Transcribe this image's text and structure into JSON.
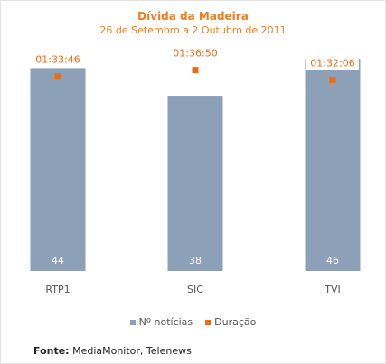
{
  "chart_data": {
    "type": "bar",
    "title": "Dívida da Madeira",
    "subtitle": "26 de Setembro a 2 Outubro de 2011",
    "categories": [
      "RTP1",
      "SIC",
      "TVI"
    ],
    "ylim": [
      0,
      48
    ],
    "series": [
      {
        "name": "Nº notícias",
        "kind": "bar",
        "color": "#8ca0b7",
        "values": [
          44,
          38,
          46
        ]
      },
      {
        "name": "Duração",
        "kind": "point",
        "color": "#ee6d10",
        "labels": [
          "01:33:46",
          "01:36:50",
          "01:32:06"
        ],
        "seconds": [
          5626,
          5810,
          5526
        ]
      }
    ],
    "duration_range_seconds": [
      0,
      6400
    ],
    "legend": "bottom-center",
    "grid": false
  },
  "source": {
    "label": "Fonte:",
    "text": "MediaMonitor, Telenews"
  },
  "colors": {
    "accent": "#ee7d22",
    "bar": "#8ca0b7",
    "marker": "#ee6d10"
  }
}
